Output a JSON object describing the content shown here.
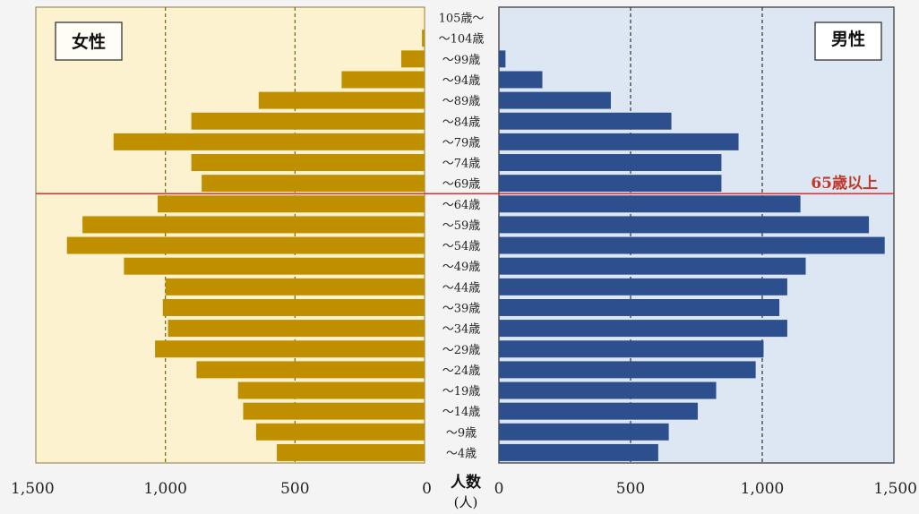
{
  "chart_data": {
    "type": "bar",
    "categories": [
      "105歳〜",
      "〜104歳",
      "〜99歳",
      "〜94歳",
      "〜89歳",
      "〜84歳",
      "〜79歳",
      "〜74歳",
      "〜69歳",
      "〜64歳",
      "〜59歳",
      "〜54歳",
      "〜49歳",
      "〜44歳",
      "〜39歳",
      "〜34歳",
      "〜29歳",
      "〜24歳",
      "〜19歳",
      "〜14歳",
      "〜9歳",
      "〜4歳"
    ],
    "series": [
      {
        "name": "女性",
        "color": "#bf8f00",
        "values": [
          2,
          10,
          90,
          320,
          640,
          900,
          1200,
          900,
          860,
          1030,
          1320,
          1380,
          1160,
          1000,
          1010,
          990,
          1040,
          880,
          720,
          700,
          650,
          570
        ]
      },
      {
        "name": "男性",
        "color": "#2e4f8e",
        "values": [
          0,
          0,
          25,
          165,
          425,
          655,
          910,
          845,
          845,
          1145,
          1405,
          1465,
          1165,
          1095,
          1065,
          1095,
          1005,
          975,
          825,
          755,
          645,
          605
        ]
      }
    ],
    "xlim": [
      0,
      1500
    ],
    "x_ticks": [
      "1,500",
      "1,000",
      "500",
      "0"
    ],
    "x_ticks_right": [
      "0",
      "500",
      "1,000",
      "1,500"
    ],
    "xlabel_line1": "人数",
    "xlabel_line2": "(人)",
    "threshold_label": "65歳以上",
    "threshold_between": [
      "〜69歳",
      "〜64歳"
    ],
    "grid": true,
    "colors": {
      "female_bg": "#fdf2cf",
      "male_bg": "#dce7f3",
      "threshold": "#e03030",
      "gridline_female": "#7a6400",
      "gridline_male": "#333333"
    }
  }
}
